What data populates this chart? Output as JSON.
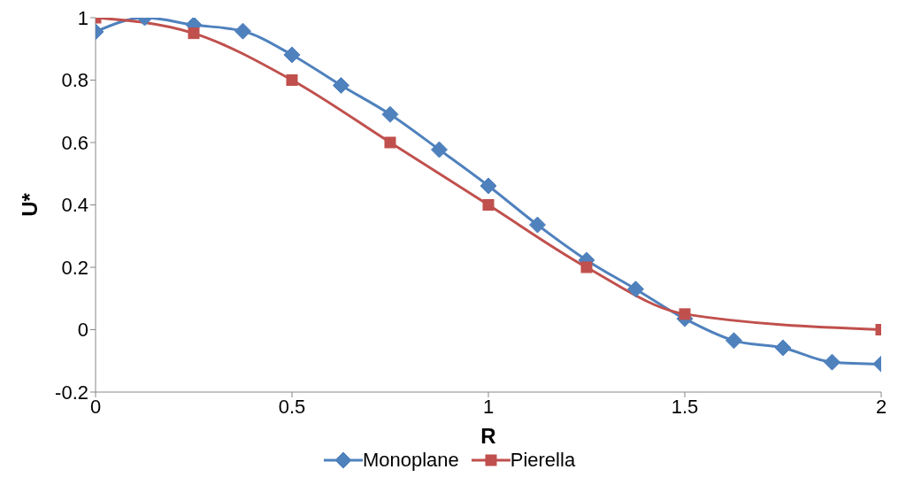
{
  "chart_data": {
    "type": "line",
    "xlabel": "R",
    "ylabel": "U*",
    "xlim": [
      0,
      2
    ],
    "xticks": [
      0,
      0.5,
      1,
      1.5,
      2
    ],
    "ylim": [
      -0.2,
      1
    ],
    "yticks": [
      -0.2,
      0,
      0.2,
      0.4,
      0.6,
      0.8,
      1
    ],
    "grid": false,
    "legend": "bottom",
    "line_style": "solid",
    "series": [
      {
        "name": "Monoplane",
        "color": "#4f81bd",
        "marker": "diamond",
        "x": [
          0,
          0.125,
          0.25,
          0.375,
          0.5,
          0.625,
          0.75,
          0.875,
          1,
          1.125,
          1.25,
          1.375,
          1.5,
          1.625,
          1.75,
          1.875,
          2
        ],
        "values": [
          0.955,
          1.0,
          0.977,
          0.957,
          0.881,
          0.783,
          0.69,
          0.577,
          0.461,
          0.336,
          0.223,
          0.13,
          0.035,
          -0.035,
          -0.058,
          -0.104,
          -0.11
        ]
      },
      {
        "name": "Pierella",
        "color": "#c0504d",
        "marker": "square",
        "x": [
          0,
          0.25,
          0.5,
          0.75,
          1,
          1.25,
          1.5,
          2
        ],
        "values": [
          1,
          0.95,
          0.8,
          0.6,
          0.4,
          0.2,
          0.05,
          0
        ]
      }
    ]
  }
}
